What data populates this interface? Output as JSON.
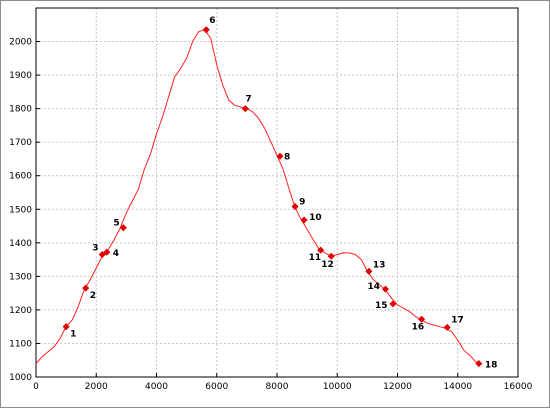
{
  "chart_data": {
    "type": "line",
    "title": "",
    "xlabel": "",
    "ylabel": "",
    "xlim": [
      0,
      16000
    ],
    "ylim": [
      1000,
      2100
    ],
    "xticks": [
      0,
      2000,
      4000,
      6000,
      8000,
      10000,
      12000,
      14000,
      16000
    ],
    "yticks": [
      1000,
      1100,
      1200,
      1300,
      1400,
      1500,
      1600,
      1700,
      1800,
      1900,
      2000
    ],
    "grid": true,
    "colors": {
      "line": "#ff2020",
      "marker": "#e00000",
      "grid": "#c8c8c8",
      "axis": "#000000"
    },
    "profile": {
      "x": [
        0,
        200,
        400,
        600,
        800,
        1000,
        1200,
        1400,
        1600,
        1800,
        2000,
        2200,
        2400,
        2600,
        2800,
        3000,
        3200,
        3400,
        3600,
        3800,
        4000,
        4200,
        4400,
        4600,
        4800,
        5000,
        5200,
        5400,
        5600,
        5800,
        6000,
        6200,
        6400,
        6600,
        6800,
        7000,
        7200,
        7400,
        7600,
        7800,
        8000,
        8200,
        8400,
        8600,
        8800,
        9000,
        9200,
        9400,
        9600,
        9800,
        10000,
        10200,
        10400,
        10600,
        10800,
        11000,
        11200,
        11400,
        11600,
        11800,
        12000,
        12200,
        12400,
        12600,
        12800,
        13000,
        13200,
        13400,
        13600,
        13800,
        14000,
        14200,
        14400,
        14600,
        14800
      ],
      "y": [
        1040,
        1060,
        1075,
        1090,
        1115,
        1150,
        1170,
        1210,
        1260,
        1290,
        1325,
        1360,
        1380,
        1410,
        1445,
        1490,
        1525,
        1560,
        1620,
        1665,
        1725,
        1775,
        1835,
        1895,
        1920,
        1950,
        2000,
        2030,
        2035,
        2010,
        1930,
        1870,
        1825,
        1810,
        1805,
        1800,
        1790,
        1770,
        1740,
        1700,
        1660,
        1620,
        1560,
        1505,
        1470,
        1440,
        1410,
        1380,
        1370,
        1360,
        1365,
        1370,
        1370,
        1365,
        1350,
        1315,
        1290,
        1275,
        1260,
        1235,
        1215,
        1205,
        1195,
        1180,
        1170,
        1160,
        1155,
        1150,
        1145,
        1135,
        1110,
        1080,
        1065,
        1045,
        1040
      ]
    },
    "waypoints": [
      {
        "label": "1",
        "x": 1000,
        "y": 1150
      },
      {
        "label": "2",
        "x": 1650,
        "y": 1265
      },
      {
        "label": "3",
        "x": 2200,
        "y": 1365
      },
      {
        "label": "4",
        "x": 2350,
        "y": 1372
      },
      {
        "label": "5",
        "x": 2900,
        "y": 1445
      },
      {
        "label": "6",
        "x": 5650,
        "y": 2035
      },
      {
        "label": "7",
        "x": 6950,
        "y": 1800
      },
      {
        "label": "8",
        "x": 8100,
        "y": 1658
      },
      {
        "label": "9",
        "x": 8600,
        "y": 1508
      },
      {
        "label": "10",
        "x": 8900,
        "y": 1468
      },
      {
        "label": "11",
        "x": 9450,
        "y": 1378
      },
      {
        "label": "12",
        "x": 9800,
        "y": 1360
      },
      {
        "label": "13",
        "x": 11050,
        "y": 1315
      },
      {
        "label": "14",
        "x": 11600,
        "y": 1262
      },
      {
        "label": "15",
        "x": 11850,
        "y": 1218
      },
      {
        "label": "16",
        "x": 12800,
        "y": 1172
      },
      {
        "label": "17",
        "x": 13650,
        "y": 1148
      },
      {
        "label": "18",
        "x": 14700,
        "y": 1040
      }
    ]
  }
}
